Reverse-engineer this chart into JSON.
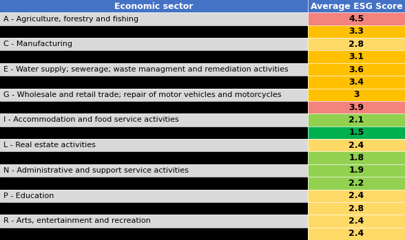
{
  "header": [
    "Economic sector",
    "Average ESG Score"
  ],
  "header_bg": "#4472c4",
  "header_fg": "#ffffff",
  "rows": [
    {
      "label": "A - Agriculture, forestry and fishing",
      "value": "4.5",
      "label_bg": "#d9d9d9",
      "value_bg": "#f4827d"
    },
    {
      "label": "",
      "value": "3.3",
      "label_bg": "#000000",
      "value_bg": "#ffc000"
    },
    {
      "label": "C - Manufacturing",
      "value": "2.8",
      "label_bg": "#d9d9d9",
      "value_bg": "#ffd966"
    },
    {
      "label": "",
      "value": "3.1",
      "label_bg": "#000000",
      "value_bg": "#ffc000"
    },
    {
      "label": "E - Water supply; sewerage; waste managment and remediation activities",
      "value": "3.6",
      "label_bg": "#d9d9d9",
      "value_bg": "#ffc000"
    },
    {
      "label": "",
      "value": "3.4",
      "label_bg": "#000000",
      "value_bg": "#ffc000"
    },
    {
      "label": "G - Wholesale and retail trade; repair of motor vehicles and motorcycles",
      "value": "3",
      "label_bg": "#d9d9d9",
      "value_bg": "#ffc000"
    },
    {
      "label": "",
      "value": "3.9",
      "label_bg": "#000000",
      "value_bg": "#f4827d"
    },
    {
      "label": "I - Accommodation and food service activities",
      "value": "2.1",
      "label_bg": "#d9d9d9",
      "value_bg": "#92d050"
    },
    {
      "label": "",
      "value": "1.5",
      "label_bg": "#000000",
      "value_bg": "#00b050"
    },
    {
      "label": "L - Real estate activities",
      "value": "2.4",
      "label_bg": "#d9d9d9",
      "value_bg": "#ffd966"
    },
    {
      "label": "",
      "value": "1.8",
      "label_bg": "#000000",
      "value_bg": "#92d050"
    },
    {
      "label": "N - Administrative and support service activities",
      "value": "1.9",
      "label_bg": "#d9d9d9",
      "value_bg": "#92d050"
    },
    {
      "label": "",
      "value": "2.2",
      "label_bg": "#000000",
      "value_bg": "#92d050"
    },
    {
      "label": "P - Education",
      "value": "2.4",
      "label_bg": "#d9d9d9",
      "value_bg": "#ffd966"
    },
    {
      "label": "",
      "value": "2.8",
      "label_bg": "#000000",
      "value_bg": "#ffd966"
    },
    {
      "label": "R - Arts, entertainment and recreation",
      "value": "2.4",
      "label_bg": "#d9d9d9",
      "value_bg": "#ffd966"
    },
    {
      "label": "",
      "value": "2.4",
      "label_bg": "#000000",
      "value_bg": "#ffd966"
    }
  ],
  "col_split": 0.76,
  "font_size_header": 9,
  "font_size_body": 8
}
